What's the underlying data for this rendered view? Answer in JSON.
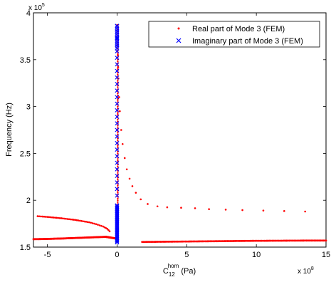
{
  "chart_data": {
    "type": "scatter",
    "title": "",
    "xlabel_main": "C",
    "xlabel_sub": "12",
    "xlabel_sup": "hom",
    "xlabel_unit": " (Pa)",
    "ylabel": "Frequency (Hz)",
    "x_exponent_label": "x 10",
    "x_exponent_power": "8",
    "y_exponent_label": "x 10",
    "y_exponent_power": "5",
    "xlim": [
      -6,
      15
    ],
    "ylim": [
      1.5,
      4.0
    ],
    "xticks": [
      -5,
      0,
      5,
      10,
      15
    ],
    "xtick_labels": [
      "-5",
      "0",
      "5",
      "10",
      "15"
    ],
    "yticks": [
      1.5,
      2,
      2.5,
      3,
      3.5,
      4
    ],
    "ytick_labels": [
      "1.5",
      "2",
      "2.5",
      "3",
      "3.5",
      "4"
    ],
    "grid": false,
    "legend_position": "top-right",
    "series": [
      {
        "name": "Real part of Mode 3 (FEM)",
        "marker": "dot",
        "color": "#ff0000",
        "segments": [
          {
            "x_from": -6.0,
            "x_to": -0.8,
            "y": [
              1.585,
              1.586,
              1.588,
              1.59,
              1.592,
              1.595,
              1.598,
              1.601,
              1.604,
              1.607,
              1.61
            ],
            "dense": true
          },
          {
            "x_from": -0.8,
            "x_to": 0.0,
            "y": [
              1.61,
              1.605,
              1.6,
              1.595,
              1.59
            ],
            "dense": true
          },
          {
            "x_from": 1.8,
            "x_to": 15.0,
            "y": [
              1.555,
              1.557,
              1.559,
              1.561,
              1.563,
              1.565,
              1.567,
              1.568,
              1.569,
              1.57,
              1.57
            ],
            "dense": true
          }
        ],
        "upper_branch_left": {
          "x": [
            -5.7,
            -5.0,
            -4.0,
            -3.0,
            -2.0,
            -1.5,
            -1.0,
            -0.7,
            -0.45
          ],
          "y": [
            1.83,
            1.822,
            1.808,
            1.79,
            1.765,
            1.745,
            1.72,
            1.695,
            1.655
          ]
        },
        "upper_branch_right": {
          "x": [
            0.02,
            0.04,
            0.06,
            0.08,
            0.1,
            0.15,
            0.2,
            0.3,
            0.4,
            0.55,
            0.7,
            0.9,
            1.1,
            1.35,
            1.7,
            2.2,
            2.9,
            3.6,
            4.6,
            5.6,
            6.6,
            7.8,
            9.0,
            10.5,
            12.0,
            13.5
          ],
          "y": [
            3.87,
            3.7,
            3.55,
            3.42,
            3.3,
            3.1,
            2.95,
            2.75,
            2.6,
            2.45,
            2.33,
            2.23,
            2.15,
            2.08,
            2.01,
            1.96,
            1.935,
            1.925,
            1.92,
            1.915,
            1.905,
            1.9,
            1.895,
            1.89,
            1.885,
            1.88
          ]
        }
      },
      {
        "name": "Imaginary part of Mode 3 (FEM)",
        "marker": "x",
        "color": "#0000ff",
        "x": 0.0,
        "y_sparse": [
          2.05,
          2.12,
          2.19,
          2.26,
          2.33,
          2.4,
          2.47,
          2.54,
          2.61,
          2.68,
          2.75,
          2.82,
          2.89,
          2.96,
          3.03,
          3.1,
          3.17,
          3.24,
          3.31,
          3.38,
          3.45,
          3.52,
          3.59,
          3.66,
          3.73,
          3.8,
          3.86
        ],
        "y_dense_range": [
          1.55,
          1.95
        ]
      }
    ]
  }
}
